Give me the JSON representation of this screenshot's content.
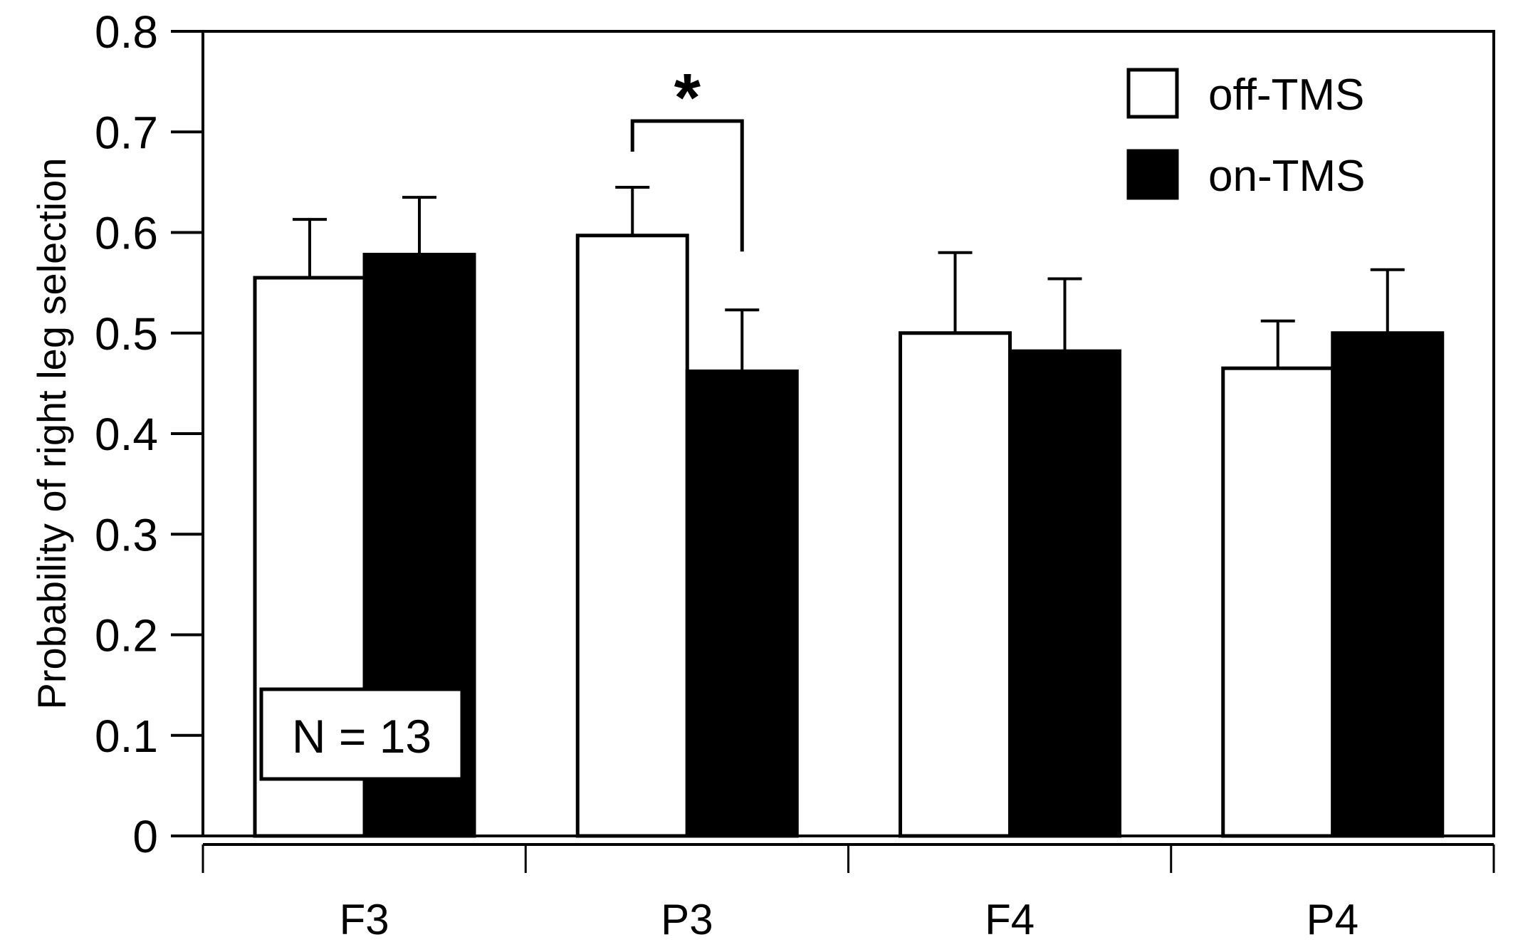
{
  "chart_data": {
    "type": "bar",
    "title": "",
    "xlabel": "",
    "ylabel": "Probability of right leg selection",
    "ylim": [
      0,
      0.8
    ],
    "yticks": [
      "0",
      "0.1",
      "0.2",
      "0.3",
      "0.4",
      "0.5",
      "0.6",
      "0.7",
      "0.8"
    ],
    "categories": [
      "F3",
      "P3",
      "F4",
      "P4"
    ],
    "series": [
      {
        "name": "off-TMS",
        "color": "#ffffff",
        "values": [
          0.555,
          0.597,
          0.5,
          0.465
        ],
        "errors": [
          0.058,
          0.048,
          0.08,
          0.047
        ]
      },
      {
        "name": "on-TMS",
        "color": "#000000",
        "values": [
          0.578,
          0.462,
          0.482,
          0.5
        ],
        "errors": [
          0.057,
          0.061,
          0.072,
          0.063
        ]
      }
    ],
    "annotations": {
      "n_label": "N = 13",
      "significance_marker": "*",
      "significance_category": "P3"
    },
    "legend": {
      "position": "top-right"
    },
    "grid": false
  }
}
